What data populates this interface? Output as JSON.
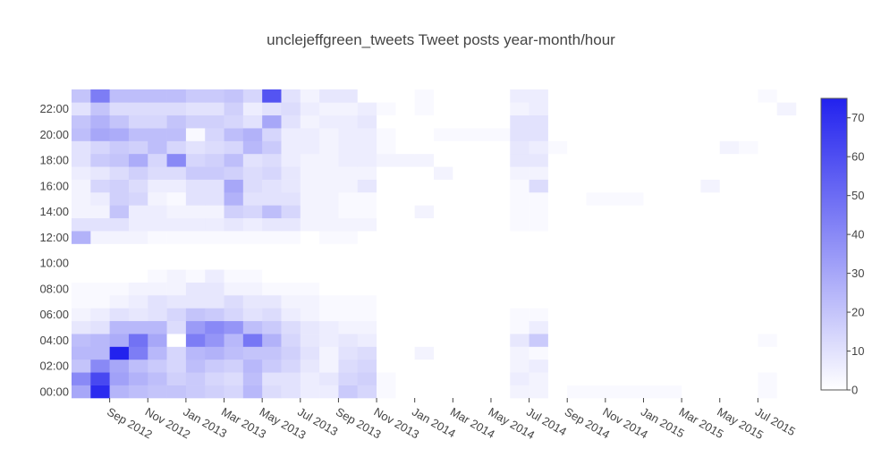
{
  "chart_data": {
    "type": "heatmap",
    "title": "unclejeffgreen_tweets Tweet posts year-month/hour",
    "xlabel": "",
    "ylabel": "",
    "x_start_month": "2012-07",
    "x_tick_labels": [
      "Sep 2012",
      "Nov 2012",
      "Jan 2013",
      "Mar 2013",
      "May 2013",
      "Jul 2013",
      "Sep 2013",
      "Nov 2013",
      "Jan 2014",
      "Mar 2014",
      "May 2014",
      "Jul 2014",
      "Sep 2014",
      "Nov 2014",
      "Jan 2015",
      "Mar 2015",
      "May 2015",
      "Jul 2015"
    ],
    "y_tick_labels": [
      "00:00",
      "02:00",
      "04:00",
      "06:00",
      "08:00",
      "10:00",
      "12:00",
      "14:00",
      "16:00",
      "18:00",
      "20:00",
      "22:00"
    ],
    "hours": [
      0,
      1,
      2,
      3,
      4,
      5,
      6,
      7,
      8,
      9,
      10,
      11,
      12,
      13,
      14,
      15,
      16,
      17,
      18,
      19,
      20,
      21,
      22,
      23
    ],
    "months": [
      "2012-07",
      "2012-08",
      "2012-09",
      "2012-10",
      "2012-11",
      "2012-12",
      "2013-01",
      "2013-02",
      "2013-03",
      "2013-04",
      "2013-05",
      "2013-06",
      "2013-07",
      "2013-08",
      "2013-09",
      "2013-10",
      "2013-11",
      "2013-12",
      "2014-01",
      "2014-02",
      "2014-03",
      "2014-04",
      "2014-05",
      "2014-06",
      "2014-07",
      "2014-08",
      "2014-09",
      "2014-10",
      "2014-11",
      "2014-12",
      "2015-01",
      "2015-02",
      "2015-03",
      "2015-04",
      "2015-05",
      "2015-06",
      "2015-07",
      "2015-08"
    ],
    "z": [
      [
        30,
        72,
        25,
        22,
        20,
        20,
        18,
        16,
        14,
        24,
        12,
        10,
        6,
        6,
        18,
        14,
        2,
        0,
        0,
        0,
        0,
        0,
        0,
        4,
        4,
        0,
        2,
        2,
        2,
        2,
        2,
        2,
        0,
        0,
        0,
        0,
        2,
        0
      ],
      [
        40,
        62,
        32,
        26,
        22,
        16,
        18,
        14,
        12,
        22,
        10,
        10,
        6,
        8,
        14,
        16,
        2,
        0,
        0,
        0,
        0,
        0,
        0,
        6,
        4,
        0,
        0,
        0,
        0,
        0,
        0,
        0,
        0,
        0,
        0,
        0,
        2,
        0
      ],
      [
        20,
        40,
        30,
        22,
        18,
        14,
        22,
        18,
        16,
        24,
        18,
        14,
        8,
        4,
        12,
        14,
        0,
        0,
        0,
        0,
        0,
        0,
        0,
        4,
        6,
        0,
        0,
        0,
        0,
        0,
        0,
        0,
        0,
        0,
        0,
        0,
        0,
        0
      ],
      [
        24,
        24,
        75,
        44,
        24,
        14,
        24,
        26,
        22,
        20,
        20,
        16,
        10,
        4,
        10,
        12,
        0,
        0,
        4,
        0,
        0,
        0,
        0,
        4,
        2,
        0,
        0,
        0,
        0,
        0,
        0,
        0,
        0,
        0,
        0,
        0,
        0,
        0
      ],
      [
        22,
        24,
        28,
        48,
        30,
        0,
        44,
        36,
        24,
        46,
        26,
        14,
        8,
        6,
        8,
        6,
        0,
        0,
        0,
        0,
        0,
        0,
        0,
        8,
        18,
        0,
        0,
        0,
        0,
        0,
        0,
        0,
        0,
        0,
        0,
        0,
        2,
        0
      ],
      [
        8,
        10,
        24,
        24,
        24,
        12,
        34,
        40,
        36,
        22,
        18,
        12,
        8,
        6,
        4,
        4,
        0,
        0,
        0,
        0,
        0,
        0,
        0,
        2,
        6,
        0,
        0,
        0,
        0,
        0,
        0,
        0,
        0,
        0,
        0,
        0,
        0,
        0
      ],
      [
        4,
        6,
        10,
        8,
        10,
        14,
        20,
        18,
        14,
        10,
        12,
        6,
        4,
        2,
        2,
        2,
        0,
        0,
        0,
        0,
        0,
        0,
        0,
        2,
        2,
        0,
        0,
        0,
        0,
        0,
        0,
        0,
        0,
        0,
        0,
        0,
        0,
        0
      ],
      [
        2,
        2,
        4,
        6,
        10,
        8,
        8,
        8,
        12,
        8,
        8,
        4,
        4,
        2,
        2,
        2,
        0,
        0,
        0,
        0,
        0,
        0,
        0,
        0,
        0,
        0,
        0,
        0,
        0,
        0,
        0,
        0,
        0,
        0,
        0,
        0,
        0,
        0
      ],
      [
        2,
        2,
        2,
        4,
        4,
        4,
        8,
        8,
        4,
        4,
        2,
        2,
        2,
        0,
        0,
        0,
        0,
        0,
        0,
        0,
        0,
        0,
        0,
        0,
        0,
        0,
        0,
        0,
        0,
        0,
        0,
        0,
        0,
        0,
        0,
        0,
        0,
        0
      ],
      [
        0,
        0,
        0,
        0,
        2,
        4,
        2,
        6,
        2,
        2,
        0,
        0,
        0,
        0,
        0,
        0,
        0,
        0,
        0,
        0,
        0,
        0,
        0,
        0,
        0,
        0,
        0,
        0,
        0,
        0,
        0,
        0,
        0,
        0,
        0,
        0,
        0,
        0
      ],
      [
        0,
        0,
        0,
        0,
        0,
        0,
        0,
        0,
        0,
        0,
        0,
        0,
        0,
        0,
        0,
        0,
        0,
        0,
        0,
        0,
        0,
        0,
        0,
        0,
        0,
        0,
        0,
        0,
        0,
        0,
        0,
        0,
        0,
        0,
        0,
        0,
        0,
        0
      ],
      [
        0,
        0,
        0,
        0,
        0,
        0,
        0,
        0,
        0,
        0,
        0,
        0,
        0,
        0,
        0,
        0,
        0,
        0,
        0,
        0,
        0,
        0,
        0,
        0,
        0,
        0,
        0,
        0,
        0,
        0,
        0,
        0,
        0,
        0,
        0,
        0,
        0,
        0
      ],
      [
        26,
        4,
        4,
        4,
        2,
        2,
        2,
        2,
        2,
        2,
        2,
        2,
        0,
        2,
        2,
        0,
        0,
        0,
        0,
        0,
        0,
        0,
        0,
        0,
        0,
        0,
        0,
        0,
        0,
        0,
        0,
        0,
        0,
        0,
        0,
        0,
        0,
        0
      ],
      [
        10,
        10,
        10,
        6,
        6,
        6,
        6,
        6,
        8,
        6,
        8,
        8,
        4,
        4,
        4,
        4,
        0,
        0,
        0,
        0,
        0,
        0,
        0,
        2,
        2,
        0,
        0,
        0,
        0,
        0,
        0,
        0,
        0,
        0,
        0,
        0,
        0,
        0
      ],
      [
        4,
        4,
        20,
        6,
        6,
        4,
        4,
        4,
        16,
        14,
        22,
        14,
        4,
        4,
        2,
        2,
        0,
        0,
        4,
        0,
        0,
        0,
        0,
        2,
        2,
        0,
        0,
        0,
        0,
        0,
        0,
        0,
        0,
        0,
        0,
        0,
        0,
        0
      ],
      [
        4,
        6,
        16,
        14,
        4,
        2,
        10,
        10,
        26,
        10,
        10,
        10,
        4,
        4,
        2,
        2,
        0,
        0,
        0,
        0,
        0,
        0,
        0,
        2,
        2,
        0,
        0,
        2,
        2,
        2,
        0,
        0,
        0,
        0,
        0,
        0,
        0,
        0
      ],
      [
        4,
        14,
        16,
        12,
        6,
        6,
        10,
        10,
        30,
        12,
        10,
        8,
        4,
        4,
        4,
        8,
        0,
        0,
        0,
        0,
        0,
        0,
        0,
        2,
        12,
        0,
        0,
        0,
        0,
        0,
        0,
        0,
        0,
        4,
        0,
        0,
        0,
        0
      ],
      [
        6,
        8,
        12,
        16,
        12,
        12,
        18,
        18,
        16,
        12,
        14,
        8,
        4,
        4,
        4,
        4,
        0,
        0,
        0,
        4,
        0,
        0,
        0,
        4,
        4,
        0,
        0,
        0,
        0,
        0,
        0,
        0,
        0,
        0,
        0,
        0,
        0,
        0
      ],
      [
        10,
        18,
        20,
        28,
        14,
        40,
        14,
        16,
        22,
        10,
        12,
        6,
        4,
        4,
        6,
        6,
        4,
        4,
        4,
        0,
        0,
        0,
        0,
        8,
        8,
        0,
        0,
        0,
        0,
        0,
        0,
        0,
        0,
        0,
        0,
        0,
        0,
        0
      ],
      [
        10,
        14,
        18,
        16,
        22,
        14,
        10,
        12,
        14,
        24,
        18,
        6,
        6,
        4,
        6,
        6,
        2,
        0,
        0,
        0,
        0,
        0,
        0,
        8,
        6,
        2,
        0,
        0,
        0,
        0,
        0,
        0,
        0,
        0,
        4,
        2,
        0,
        0
      ],
      [
        22,
        30,
        28,
        22,
        22,
        22,
        2,
        14,
        22,
        26,
        14,
        6,
        6,
        4,
        6,
        6,
        2,
        0,
        0,
        2,
        2,
        2,
        2,
        10,
        10,
        0,
        0,
        0,
        0,
        0,
        0,
        0,
        0,
        0,
        0,
        0,
        0,
        0
      ],
      [
        20,
        26,
        20,
        14,
        14,
        20,
        16,
        16,
        14,
        10,
        30,
        10,
        4,
        6,
        6,
        8,
        0,
        0,
        0,
        0,
        0,
        0,
        0,
        10,
        10,
        0,
        0,
        0,
        0,
        0,
        0,
        0,
        0,
        0,
        0,
        0,
        0,
        0
      ],
      [
        10,
        20,
        12,
        12,
        12,
        12,
        10,
        10,
        16,
        6,
        10,
        12,
        6,
        4,
        4,
        6,
        2,
        0,
        2,
        0,
        0,
        0,
        0,
        4,
        6,
        0,
        0,
        0,
        0,
        0,
        0,
        0,
        0,
        0,
        0,
        0,
        0,
        4
      ],
      [
        20,
        44,
        22,
        22,
        22,
        22,
        18,
        18,
        20,
        14,
        58,
        10,
        4,
        8,
        8,
        0,
        0,
        0,
        2,
        0,
        0,
        0,
        0,
        6,
        6,
        0,
        0,
        0,
        0,
        0,
        0,
        0,
        0,
        0,
        0,
        0,
        2,
        0
      ]
    ],
    "zmin": 0,
    "zmax": 75,
    "colorscale": [
      "#ffffff",
      "#2222ee"
    ],
    "colorbar_ticks": [
      "0",
      "10",
      "20",
      "30",
      "40",
      "50",
      "60",
      "70"
    ],
    "colorbar_tick_values": [
      0,
      10,
      20,
      30,
      40,
      50,
      60,
      70
    ]
  }
}
